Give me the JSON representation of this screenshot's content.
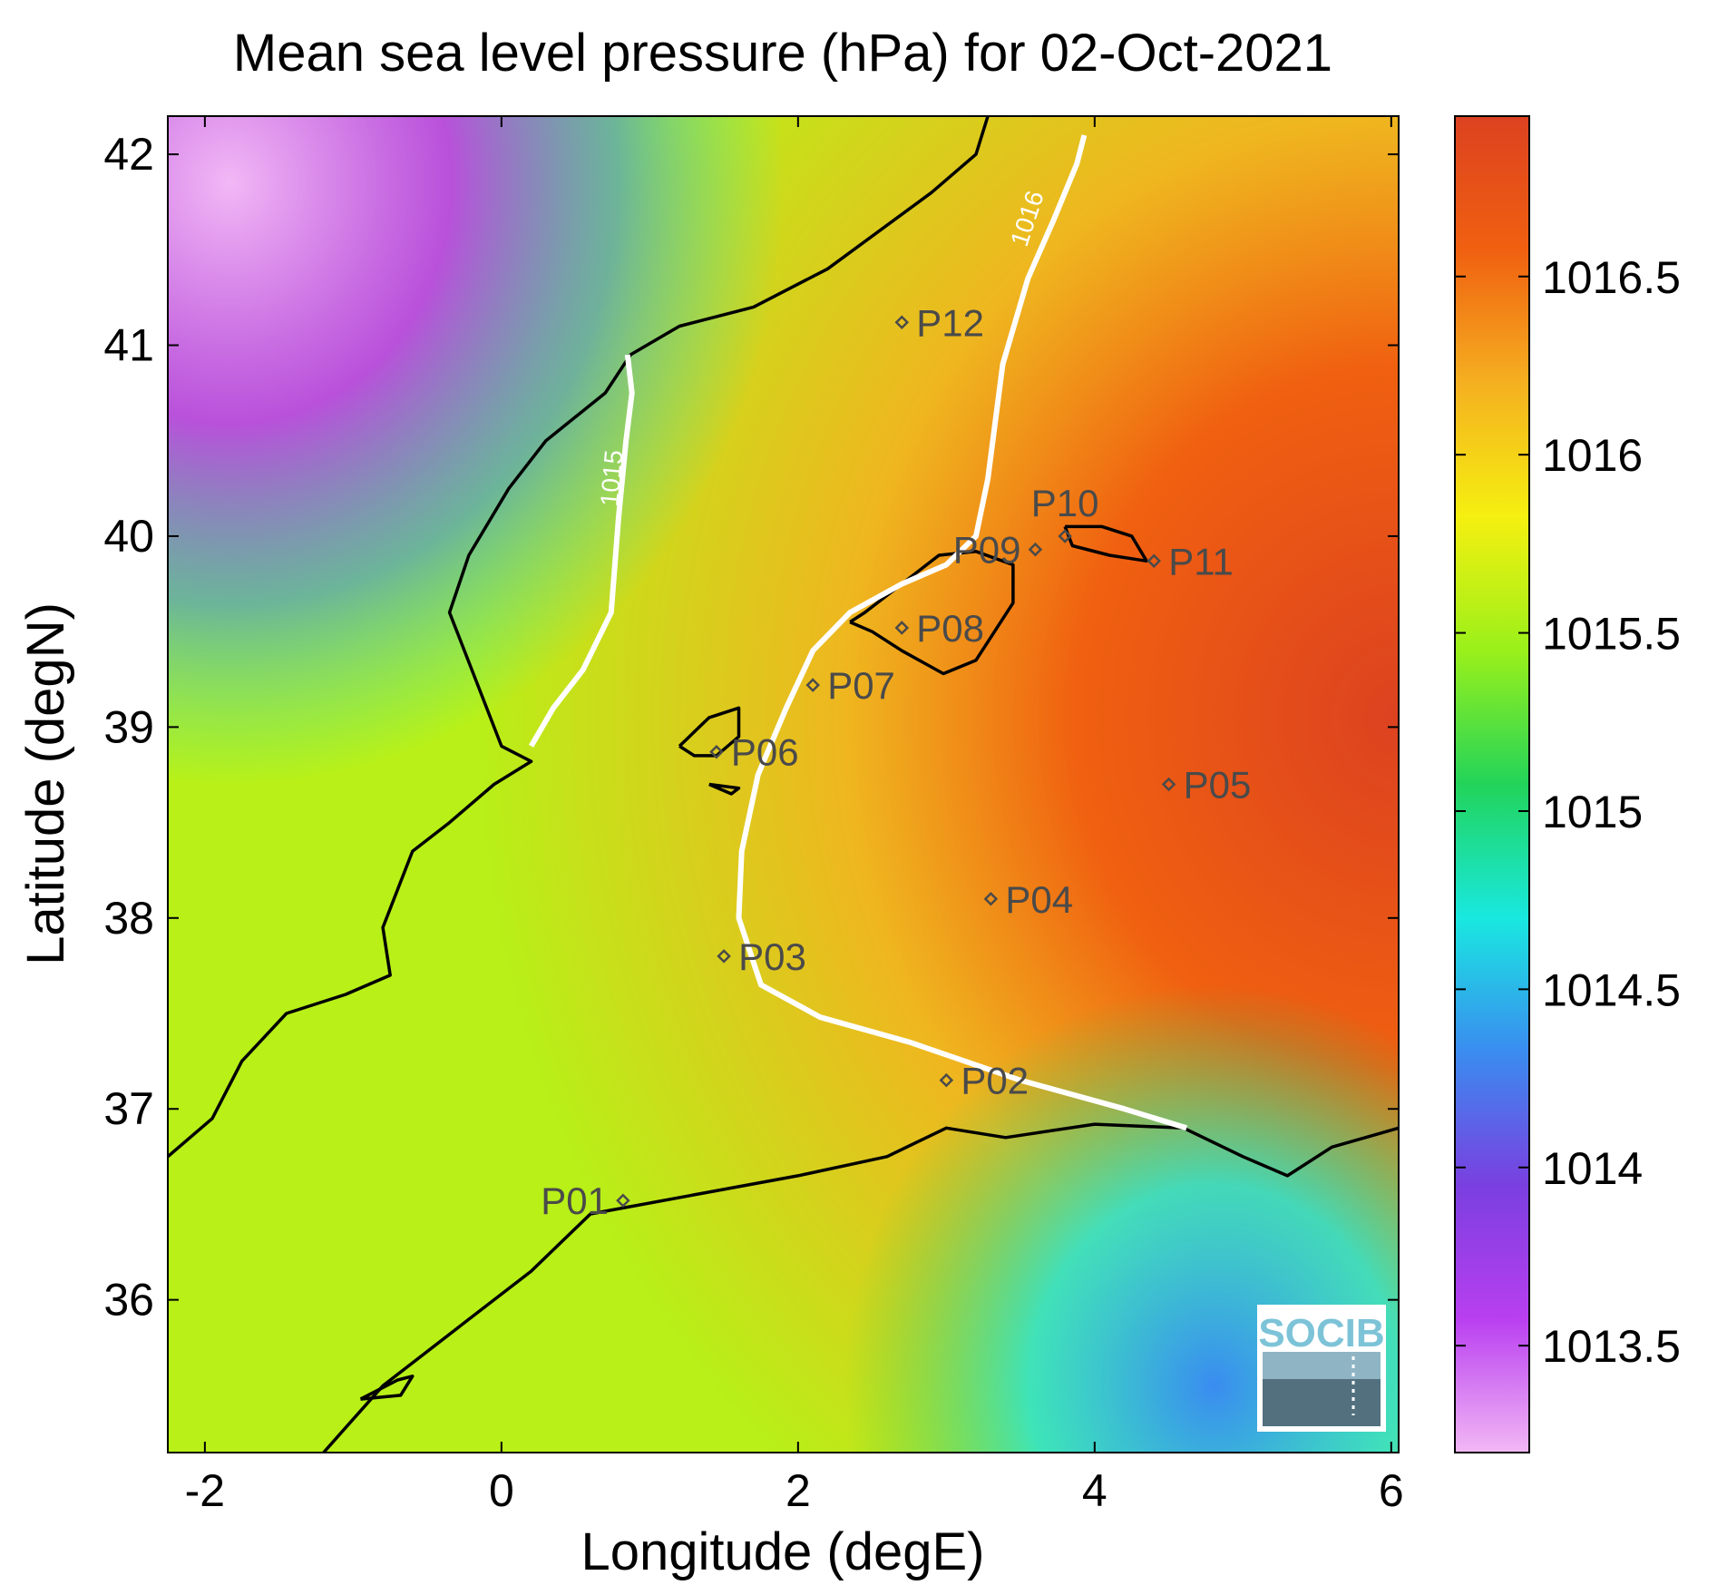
{
  "title": "Mean sea level pressure (hPa) for 02-Oct-2021",
  "xlabel": "Longitude (degE)",
  "ylabel": "Latitude (degN)",
  "x_ticks": [
    {
      "value": -2,
      "label": "-2"
    },
    {
      "value": 0,
      "label": "0"
    },
    {
      "value": 2,
      "label": "2"
    },
    {
      "value": 4,
      "label": "4"
    },
    {
      "value": 6,
      "label": "6"
    }
  ],
  "y_ticks": [
    {
      "value": 36,
      "label": "36"
    },
    {
      "value": 37,
      "label": "37"
    },
    {
      "value": 38,
      "label": "38"
    },
    {
      "value": 39,
      "label": "39"
    },
    {
      "value": 40,
      "label": "40"
    },
    {
      "value": 41,
      "label": "41"
    },
    {
      "value": 42,
      "label": "42"
    }
  ],
  "x_range": [
    -2.25,
    6.05
  ],
  "y_range": [
    35.2,
    42.2
  ],
  "colorbar": {
    "range": [
      1013.2,
      1016.95
    ],
    "ticks": [
      {
        "value": 1013.5,
        "label": "1013.5"
      },
      {
        "value": 1014,
        "label": "1014"
      },
      {
        "value": 1014.5,
        "label": "1014.5"
      },
      {
        "value": 1015,
        "label": "1015"
      },
      {
        "value": 1015.5,
        "label": "1015.5"
      },
      {
        "value": 1016,
        "label": "1016"
      },
      {
        "value": 1016.5,
        "label": "1016.5"
      }
    ],
    "colors": [
      "#f2b8f5",
      "#b93ff0",
      "#7a3fe0",
      "#3a8cf0",
      "#19e8e0",
      "#22d45a",
      "#9af01a",
      "#f5f010",
      "#f5b020",
      "#f06010",
      "#dc4220"
    ]
  },
  "contours": [
    {
      "label": "1015",
      "label_at": [
        0.8,
        40.3
      ],
      "label_angle": -85,
      "points": [
        [
          0.85,
          40.95
        ],
        [
          0.88,
          40.75
        ],
        [
          0.84,
          40.5
        ],
        [
          0.79,
          40.1
        ],
        [
          0.74,
          39.6
        ],
        [
          0.55,
          39.3
        ],
        [
          0.35,
          39.1
        ],
        [
          0.2,
          38.9
        ]
      ]
    },
    {
      "label": "1016",
      "label_at": [
        3.6,
        41.65
      ],
      "label_angle": -72,
      "points": [
        [
          3.93,
          42.1
        ],
        [
          3.88,
          41.95
        ],
        [
          3.72,
          41.65
        ],
        [
          3.55,
          41.35
        ],
        [
          3.38,
          40.9
        ],
        [
          3.28,
          40.3
        ],
        [
          3.2,
          40.0
        ],
        [
          3.0,
          39.85
        ],
        [
          2.7,
          39.75
        ],
        [
          2.35,
          39.6
        ],
        [
          2.1,
          39.4
        ],
        [
          1.92,
          39.1
        ],
        [
          1.73,
          38.75
        ],
        [
          1.62,
          38.35
        ],
        [
          1.6,
          38.0
        ],
        [
          1.75,
          37.65
        ],
        [
          2.15,
          37.48
        ],
        [
          2.75,
          37.35
        ],
        [
          3.5,
          37.15
        ],
        [
          4.2,
          37.0
        ],
        [
          4.62,
          36.9
        ]
      ]
    }
  ],
  "stations": [
    {
      "name": "P01",
      "lon": 0.82,
      "lat": 36.52,
      "label_side": "left"
    },
    {
      "name": "P02",
      "lon": 3.0,
      "lat": 37.15,
      "label_side": "right"
    },
    {
      "name": "P03",
      "lon": 1.5,
      "lat": 37.8,
      "label_side": "right"
    },
    {
      "name": "P04",
      "lon": 3.3,
      "lat": 38.1,
      "label_side": "right"
    },
    {
      "name": "P05",
      "lon": 4.5,
      "lat": 38.7,
      "label_side": "right"
    },
    {
      "name": "P06",
      "lon": 1.45,
      "lat": 38.87,
      "label_side": "right"
    },
    {
      "name": "P07",
      "lon": 2.1,
      "lat": 39.22,
      "label_side": "right"
    },
    {
      "name": "P08",
      "lon": 2.7,
      "lat": 39.52,
      "label_side": "right"
    },
    {
      "name": "P09",
      "lon": 3.6,
      "lat": 39.93,
      "label_side": "left"
    },
    {
      "name": "P10",
      "lon": 3.8,
      "lat": 40.0,
      "label_side": "above"
    },
    {
      "name": "P11",
      "lon": 4.4,
      "lat": 39.87,
      "label_side": "right"
    },
    {
      "name": "P12",
      "lon": 2.7,
      "lat": 41.12,
      "label_side": "right"
    }
  ],
  "coastlines": {
    "iberia": [
      [
        -2.25,
        36.75
      ],
      [
        -1.95,
        36.95
      ],
      [
        -1.75,
        37.25
      ],
      [
        -1.45,
        37.5
      ],
      [
        -1.05,
        37.6
      ],
      [
        -0.75,
        37.7
      ],
      [
        -0.8,
        37.95
      ],
      [
        -0.6,
        38.35
      ],
      [
        -0.35,
        38.5
      ],
      [
        -0.05,
        38.7
      ],
      [
        0.2,
        38.82
      ],
      [
        0.0,
        38.9
      ],
      [
        -0.2,
        39.3
      ],
      [
        -0.35,
        39.6
      ],
      [
        -0.22,
        39.9
      ],
      [
        0.05,
        40.25
      ],
      [
        0.3,
        40.5
      ],
      [
        0.7,
        40.75
      ],
      [
        0.87,
        40.95
      ],
      [
        1.2,
        41.1
      ],
      [
        1.7,
        41.2
      ],
      [
        2.2,
        41.4
      ],
      [
        2.9,
        41.8
      ],
      [
        3.2,
        42.0
      ],
      [
        3.28,
        42.2
      ]
    ],
    "africa": [
      [
        -1.2,
        35.2
      ],
      [
        -0.8,
        35.55
      ],
      [
        -0.3,
        35.85
      ],
      [
        0.2,
        36.15
      ],
      [
        0.6,
        36.45
      ],
      [
        1.3,
        36.55
      ],
      [
        2.0,
        36.65
      ],
      [
        2.6,
        36.75
      ],
      [
        3.0,
        36.9
      ],
      [
        3.4,
        36.85
      ],
      [
        4.0,
        36.92
      ],
      [
        4.6,
        36.9
      ],
      [
        5.0,
        36.75
      ],
      [
        5.3,
        36.65
      ],
      [
        5.6,
        36.8
      ],
      [
        6.05,
        36.9
      ]
    ],
    "alboran": [
      [
        -0.95,
        35.48
      ],
      [
        -0.7,
        35.58
      ],
      [
        -0.6,
        35.6
      ],
      [
        -0.68,
        35.5
      ],
      [
        -0.95,
        35.48
      ]
    ],
    "mallorca": [
      [
        2.35,
        39.55
      ],
      [
        2.5,
        39.5
      ],
      [
        2.7,
        39.4
      ],
      [
        2.98,
        39.28
      ],
      [
        3.2,
        39.35
      ],
      [
        3.45,
        39.65
      ],
      [
        3.45,
        39.85
      ],
      [
        3.2,
        39.92
      ],
      [
        2.95,
        39.9
      ],
      [
        2.7,
        39.75
      ],
      [
        2.45,
        39.6
      ],
      [
        2.35,
        39.55
      ]
    ],
    "menorca": [
      [
        3.8,
        40.05
      ],
      [
        4.05,
        40.05
      ],
      [
        4.25,
        40.0
      ],
      [
        4.35,
        39.87
      ],
      [
        4.1,
        39.9
      ],
      [
        3.85,
        39.95
      ],
      [
        3.8,
        40.05
      ]
    ],
    "ibiza": [
      [
        1.2,
        38.9
      ],
      [
        1.4,
        39.05
      ],
      [
        1.6,
        39.1
      ],
      [
        1.6,
        38.95
      ],
      [
        1.45,
        38.85
      ],
      [
        1.3,
        38.85
      ],
      [
        1.2,
        38.9
      ]
    ],
    "formentera": [
      [
        1.4,
        38.7
      ],
      [
        1.6,
        38.68
      ],
      [
        1.55,
        38.65
      ],
      [
        1.4,
        38.7
      ]
    ]
  },
  "logo": {
    "text": "SOCIB"
  }
}
